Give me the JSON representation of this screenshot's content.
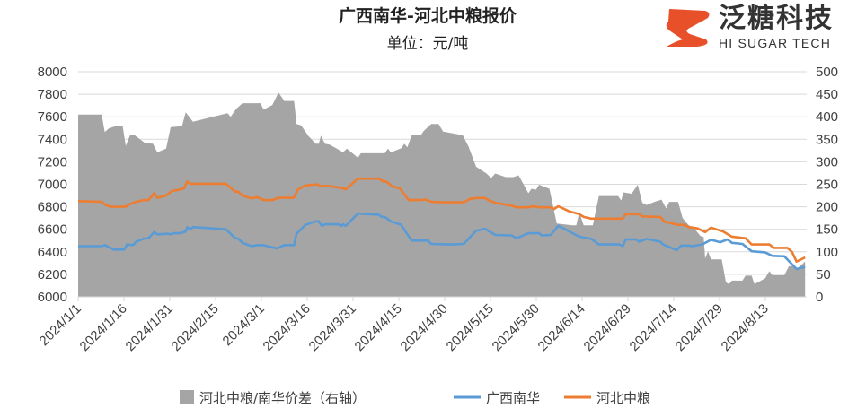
{
  "logo": {
    "name_cn": "泛糖科技",
    "name_en": "HI SUGAR TECH",
    "color": "#e8502a"
  },
  "chart_data": {
    "type": "area+line",
    "title": "广西南华-河北中粮报价",
    "subtitle": "单位：元/吨",
    "x_unit": "days since 2024/1/1",
    "x_tick_labels": [
      "2024/1/1",
      "2024/1/16",
      "2024/1/31",
      "2024/2/15",
      "2024/3/1",
      "2024/3/16",
      "2024/3/31",
      "2024/4/15",
      "2024/4/30",
      "2024/5/15",
      "2024/5/30",
      "2024/6/14",
      "2024/6/29",
      "2024/7/14",
      "2024/7/29",
      "2024/8/13"
    ],
    "x_tick_days": [
      0,
      15,
      30,
      45,
      60,
      75,
      90,
      105,
      120,
      135,
      150,
      165,
      180,
      195,
      210,
      225
    ],
    "x_range": [
      0,
      238
    ],
    "y_left": {
      "range": [
        6000,
        8000
      ],
      "step": 200,
      "ticks": [
        "6000",
        "6200",
        "6400",
        "6600",
        "6800",
        "7000",
        "7200",
        "7400",
        "7600",
        "7800",
        "8000"
      ]
    },
    "y_right": {
      "range": [
        0,
        500
      ],
      "step": 50,
      "ticks": [
        "0",
        "50",
        "100",
        "150",
        "200",
        "250",
        "300",
        "350",
        "400",
        "450",
        "500"
      ]
    },
    "grid": true,
    "legend_position": "bottom",
    "series": [
      {
        "name": "河北中粮/南华价差（右轴）",
        "type": "area",
        "axis": "right",
        "color": "#a5a5a5",
        "points": [
          [
            0,
            405
          ],
          [
            7.7,
            405
          ],
          [
            8.7,
            366
          ],
          [
            10,
            374
          ],
          [
            12.2,
            379
          ],
          [
            14.6,
            379
          ],
          [
            15.6,
            335
          ],
          [
            17,
            359
          ],
          [
            18.5,
            359
          ],
          [
            22,
            341
          ],
          [
            24.5,
            340
          ],
          [
            25.9,
            321
          ],
          [
            28.8,
            329
          ],
          [
            30.3,
            377
          ],
          [
            34,
            379
          ],
          [
            35.2,
            410
          ],
          [
            37.6,
            389
          ],
          [
            48.9,
            408
          ],
          [
            49.9,
            400
          ],
          [
            51.8,
            418
          ],
          [
            53.8,
            430
          ],
          [
            59.7,
            430
          ],
          [
            60.7,
            416
          ],
          [
            63.6,
            426
          ],
          [
            65.6,
            454
          ],
          [
            67.5,
            435
          ],
          [
            70.7,
            435
          ],
          [
            71.5,
            384
          ],
          [
            73,
            381
          ],
          [
            75.4,
            357
          ],
          [
            77.8,
            340
          ],
          [
            78.8,
            340
          ],
          [
            79.5,
            358
          ],
          [
            80.8,
            340
          ],
          [
            82.3,
            338
          ],
          [
            84.7,
            329
          ],
          [
            86.7,
            321
          ],
          [
            88,
            329
          ],
          [
            91.6,
            309
          ],
          [
            92.6,
            319
          ],
          [
            100.4,
            319
          ],
          [
            101.4,
            329
          ],
          [
            102.4,
            321
          ],
          [
            105.8,
            330
          ],
          [
            106.8,
            340
          ],
          [
            107.8,
            332
          ],
          [
            109.2,
            359
          ],
          [
            112.2,
            359
          ],
          [
            113.1,
            368
          ],
          [
            115.6,
            384
          ],
          [
            118,
            384
          ],
          [
            119.5,
            367
          ],
          [
            125.9,
            359
          ],
          [
            127.8,
            334
          ],
          [
            130.3,
            289
          ],
          [
            133.7,
            274
          ],
          [
            135.2,
            264
          ],
          [
            136.6,
            274
          ],
          [
            140,
            266
          ],
          [
            142.5,
            266
          ],
          [
            144.2,
            270
          ],
          [
            147.4,
            230
          ],
          [
            148.4,
            240
          ],
          [
            149.9,
            238
          ],
          [
            150.9,
            249
          ],
          [
            154.3,
            240
          ],
          [
            156.7,
            163
          ],
          [
            161.6,
            159
          ],
          [
            163.1,
            159
          ],
          [
            164.1,
            189
          ],
          [
            165.5,
            159
          ],
          [
            168.5,
            159
          ],
          [
            170.5,
            224
          ],
          [
            176.8,
            224
          ],
          [
            177.8,
            214
          ],
          [
            178.5,
            232
          ],
          [
            181.2,
            229
          ],
          [
            183.2,
            249
          ],
          [
            184.7,
            209
          ],
          [
            186.1,
            204
          ],
          [
            189.1,
            212
          ],
          [
            191,
            216
          ],
          [
            192.5,
            196
          ],
          [
            193.5,
            211
          ],
          [
            196.4,
            211
          ],
          [
            197.9,
            175
          ],
          [
            199.9,
            159
          ],
          [
            201.3,
            155
          ],
          [
            203.8,
            135
          ],
          [
            204.8,
            133
          ],
          [
            205.3,
            85
          ],
          [
            206.2,
            101
          ],
          [
            207.2,
            83
          ],
          [
            210.7,
            83
          ],
          [
            212.1,
            32
          ],
          [
            213.1,
            28
          ],
          [
            214.1,
            36
          ],
          [
            217.5,
            36
          ],
          [
            218.5,
            47
          ],
          [
            220.5,
            47
          ],
          [
            221.4,
            28
          ],
          [
            224.9,
            41
          ],
          [
            226.3,
            57
          ],
          [
            227.3,
            48
          ],
          [
            231.2,
            48
          ],
          [
            232.7,
            68
          ],
          [
            234.2,
            68
          ],
          [
            235.2,
            62
          ],
          [
            238,
            78
          ]
        ]
      },
      {
        "name": "广西南华",
        "type": "line",
        "axis": "left",
        "color": "#5b9bd5",
        "points": [
          [
            0,
            6450
          ],
          [
            7.7,
            6450
          ],
          [
            8.7,
            6460
          ],
          [
            11.7,
            6420
          ],
          [
            15.1,
            6420
          ],
          [
            16,
            6465
          ],
          [
            18,
            6460
          ],
          [
            19,
            6490
          ],
          [
            21.5,
            6517
          ],
          [
            23,
            6520
          ],
          [
            24.9,
            6576
          ],
          [
            25.9,
            6555
          ],
          [
            29.3,
            6560
          ],
          [
            30.3,
            6555
          ],
          [
            31.3,
            6565
          ],
          [
            33.2,
            6565
          ],
          [
            35.2,
            6580
          ],
          [
            35.7,
            6619
          ],
          [
            36.7,
            6598
          ],
          [
            37.6,
            6620
          ],
          [
            48.4,
            6600
          ],
          [
            51.4,
            6520
          ],
          [
            52.4,
            6518
          ],
          [
            53.8,
            6480
          ],
          [
            56.8,
            6450
          ],
          [
            58.7,
            6460
          ],
          [
            60.7,
            6458
          ],
          [
            65.1,
            6430
          ],
          [
            67.5,
            6460
          ],
          [
            70.7,
            6460
          ],
          [
            71.5,
            6560
          ],
          [
            74.4,
            6640
          ],
          [
            77.8,
            6670
          ],
          [
            78.8,
            6670
          ],
          [
            79.8,
            6630
          ],
          [
            80.8,
            6645
          ],
          [
            85.2,
            6645
          ],
          [
            86.2,
            6630
          ],
          [
            86.7,
            6645
          ],
          [
            87.6,
            6630
          ],
          [
            91.6,
            6740
          ],
          [
            98.4,
            6730
          ],
          [
            99.4,
            6710
          ],
          [
            100.4,
            6710
          ],
          [
            102.4,
            6670
          ],
          [
            105.8,
            6640
          ],
          [
            106.8,
            6595
          ],
          [
            109.2,
            6500
          ],
          [
            114.6,
            6500
          ],
          [
            115.6,
            6470
          ],
          [
            121.5,
            6465
          ],
          [
            126.3,
            6470
          ],
          [
            130.3,
            6587
          ],
          [
            133.2,
            6605
          ],
          [
            134.7,
            6580
          ],
          [
            136.6,
            6550
          ],
          [
            142,
            6545
          ],
          [
            143.5,
            6520
          ],
          [
            147.4,
            6565
          ],
          [
            150.9,
            6565
          ],
          [
            151.8,
            6545
          ],
          [
            154.8,
            6550
          ],
          [
            157.2,
            6632
          ],
          [
            161.6,
            6570
          ],
          [
            164.1,
            6535
          ],
          [
            168,
            6515
          ],
          [
            170.5,
            6465
          ],
          [
            177.3,
            6465
          ],
          [
            178.3,
            6450
          ],
          [
            179.3,
            6510
          ],
          [
            182.7,
            6510
          ],
          [
            183.7,
            6490
          ],
          [
            186.1,
            6515
          ],
          [
            190.6,
            6490
          ],
          [
            191.5,
            6465
          ],
          [
            196,
            6415
          ],
          [
            197.4,
            6455
          ],
          [
            200,
            6455
          ],
          [
            201,
            6450
          ],
          [
            204.3,
            6465
          ],
          [
            207.2,
            6507
          ],
          [
            210.2,
            6485
          ],
          [
            212.6,
            6510
          ],
          [
            214.1,
            6480
          ],
          [
            217.5,
            6470
          ],
          [
            220.5,
            6405
          ],
          [
            224.9,
            6395
          ],
          [
            227.3,
            6364
          ],
          [
            231.2,
            6360
          ],
          [
            235.2,
            6247
          ],
          [
            238,
            6265
          ]
        ]
      },
      {
        "name": "河北中粮",
        "type": "line",
        "axis": "left",
        "color": "#ed7d31",
        "points": [
          [
            0,
            6850
          ],
          [
            7.7,
            6845
          ],
          [
            8.7,
            6820
          ],
          [
            10.7,
            6800
          ],
          [
            15.6,
            6800
          ],
          [
            16.6,
            6820
          ],
          [
            19,
            6845
          ],
          [
            21.5,
            6860
          ],
          [
            23,
            6860
          ],
          [
            24.9,
            6920
          ],
          [
            25.9,
            6880
          ],
          [
            28.8,
            6900
          ],
          [
            30.8,
            6943
          ],
          [
            32.8,
            6950
          ],
          [
            34.7,
            6965
          ],
          [
            35.7,
            7025
          ],
          [
            36.7,
            7005
          ],
          [
            48.4,
            7005
          ],
          [
            51.4,
            6935
          ],
          [
            52.4,
            6935
          ],
          [
            53.8,
            6900
          ],
          [
            56.8,
            6875
          ],
          [
            58.7,
            6885
          ],
          [
            60.7,
            6860
          ],
          [
            63.6,
            6860
          ],
          [
            65.6,
            6880
          ],
          [
            70.6,
            6880
          ],
          [
            72,
            6955
          ],
          [
            74.4,
            6990
          ],
          [
            78.3,
            7000
          ],
          [
            79.3,
            6985
          ],
          [
            82.3,
            6985
          ],
          [
            85.7,
            6970
          ],
          [
            87.6,
            6955
          ],
          [
            91.6,
            7050
          ],
          [
            98.4,
            7050
          ],
          [
            99.9,
            7025
          ],
          [
            100.9,
            7025
          ],
          [
            102.9,
            6980
          ],
          [
            105.3,
            6965
          ],
          [
            108.2,
            6860
          ],
          [
            112.2,
            6860
          ],
          [
            113.7,
            6865
          ],
          [
            115.6,
            6845
          ],
          [
            119.5,
            6840
          ],
          [
            126.3,
            6840
          ],
          [
            128.3,
            6870
          ],
          [
            130.3,
            6878
          ],
          [
            133.2,
            6878
          ],
          [
            134.7,
            6855
          ],
          [
            136.6,
            6835
          ],
          [
            142,
            6810
          ],
          [
            143.5,
            6795
          ],
          [
            147.4,
            6795
          ],
          [
            148.9,
            6805
          ],
          [
            150.9,
            6795
          ],
          [
            154.8,
            6795
          ],
          [
            155.8,
            6780
          ],
          [
            157.2,
            6805
          ],
          [
            160.7,
            6760
          ],
          [
            164.1,
            6735
          ],
          [
            165.5,
            6710
          ],
          [
            168,
            6695
          ],
          [
            178.3,
            6695
          ],
          [
            179.3,
            6735
          ],
          [
            183.7,
            6735
          ],
          [
            184.7,
            6715
          ],
          [
            190.6,
            6710
          ],
          [
            192,
            6668
          ],
          [
            196.4,
            6640
          ],
          [
            198.4,
            6640
          ],
          [
            199.9,
            6620
          ],
          [
            202.8,
            6608
          ],
          [
            205.3,
            6575
          ],
          [
            207.2,
            6615
          ],
          [
            211.2,
            6580
          ],
          [
            214,
            6535
          ],
          [
            218.5,
            6520
          ],
          [
            220.5,
            6465
          ],
          [
            226.3,
            6465
          ],
          [
            227.8,
            6435
          ],
          [
            232.2,
            6435
          ],
          [
            233.7,
            6400
          ],
          [
            235.2,
            6313
          ],
          [
            238,
            6350
          ]
        ]
      }
    ]
  }
}
